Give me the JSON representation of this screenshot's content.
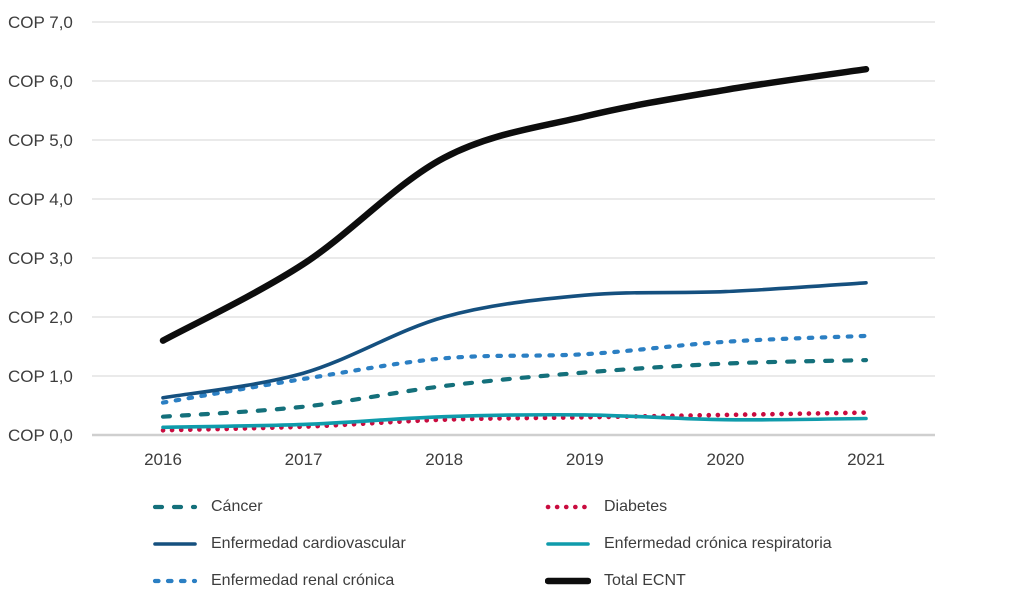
{
  "chart_data": {
    "type": "line",
    "x": [
      "2016",
      "2017",
      "2018",
      "2019",
      "2020",
      "2021"
    ],
    "y_tick_labels": [
      "COP 0,0",
      "COP 1,0",
      "COP 2,0",
      "COP 3,0",
      "COP 4,0",
      "COP 5,0",
      "COP 6,0",
      "COP 7,0"
    ],
    "ylim": [
      0,
      7
    ],
    "grid": true,
    "legend_position": "bottom",
    "series": [
      {
        "name": "Cáncer",
        "color": "#14707b",
        "style": "dashed",
        "values": [
          0.31,
          0.48,
          0.83,
          1.06,
          1.21,
          1.27
        ]
      },
      {
        "name": "Diabetes",
        "color": "#c90c3f",
        "style": "dotted",
        "values": [
          0.08,
          0.14,
          0.26,
          0.3,
          0.34,
          0.38
        ]
      },
      {
        "name": "Enfermedad cardiovascular",
        "color": "#15507f",
        "style": "solid",
        "values": [
          0.63,
          1.05,
          2.0,
          2.37,
          2.43,
          2.58
        ]
      },
      {
        "name": "Enfermedad crónica respiratoria",
        "color": "#0f9bab",
        "style": "solid",
        "values": [
          0.13,
          0.18,
          0.31,
          0.34,
          0.26,
          0.28
        ]
      },
      {
        "name": "Enfermedad renal crónica",
        "color": "#2b7fc3",
        "style": "dashed-short",
        "values": [
          0.55,
          0.95,
          1.3,
          1.37,
          1.58,
          1.68
        ]
      },
      {
        "name": "Total ECNT",
        "color": "#0d0d0d",
        "style": "solid-thick",
        "values": [
          1.6,
          2.9,
          4.7,
          5.4,
          5.85,
          6.2
        ]
      }
    ],
    "colors": {
      "grid_line": "#dedede",
      "axis_line": "#cfcfcf",
      "tick_text": "#3d3d3d"
    }
  }
}
